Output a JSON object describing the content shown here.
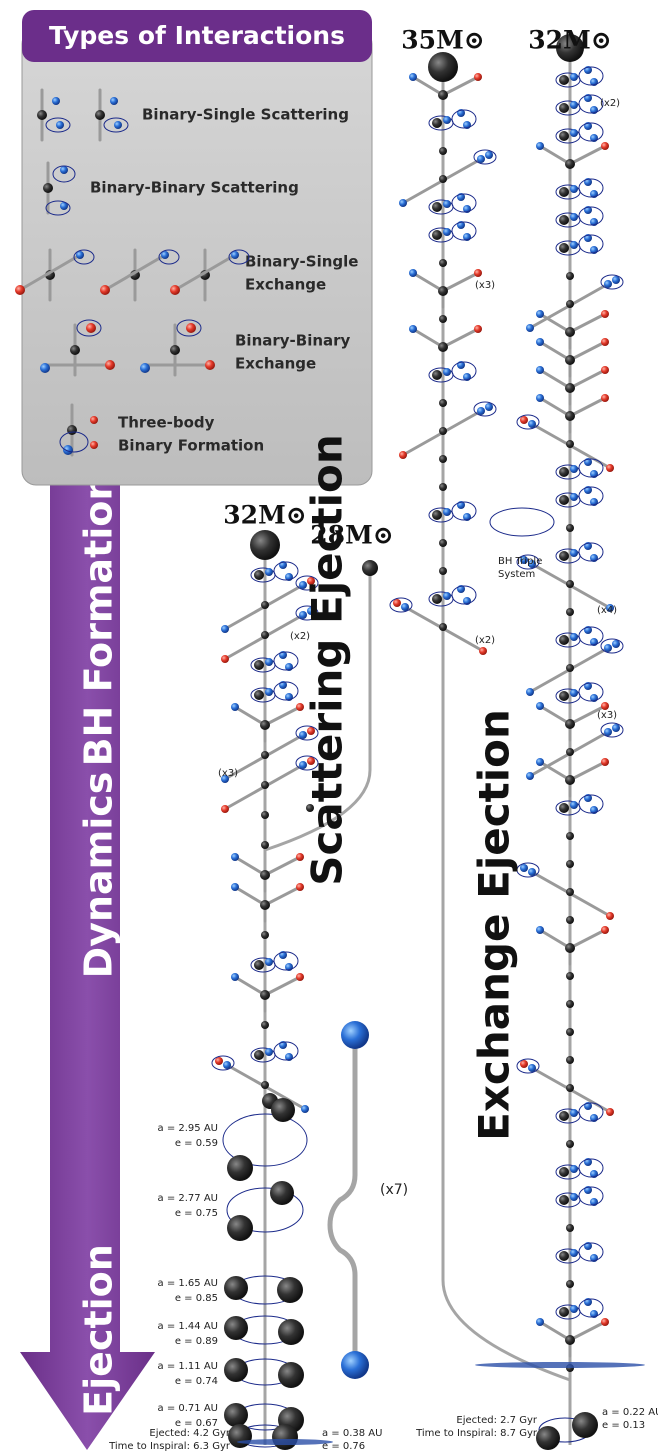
{
  "legend": {
    "title": "Types of Interactions",
    "items": [
      [
        "Binary-Single Scattering"
      ],
      [
        "Binary-Binary Scattering"
      ],
      [
        "Binary-Single",
        "Exchange"
      ],
      [
        "Binary-Binary",
        "Exchange"
      ],
      [
        "Three-body",
        "Binary Formation"
      ]
    ]
  },
  "arrow": {
    "labels": [
      "BH Formation",
      "Dynamics",
      "Ejection"
    ]
  },
  "scattering": {
    "masses": [
      "32M⊙",
      "28M⊙"
    ],
    "title": "Scattering Ejection",
    "repeats": [
      "(x2)",
      "(x3)"
    ],
    "merger_repeat": "(x7)",
    "orbits": [
      {
        "a": "a = 2.95 AU",
        "e": "e = 0.59"
      },
      {
        "a": "a = 2.77 AU",
        "e": "e = 0.75"
      },
      {
        "a": "a = 1.65 AU",
        "e": "e = 0.85"
      },
      {
        "a": "a = 1.44 AU",
        "e": "e = 0.89"
      },
      {
        "a": "a = 1.11 AU",
        "e": "e = 0.74"
      },
      {
        "a": "a = 0.71 AU",
        "e": "e = 0.67"
      }
    ],
    "final": {
      "a": "a = 0.38 AU",
      "e": "e = 0.76",
      "ejected": "Ejected: 4.2 Gyr",
      "inspiral": "Time to Inspiral: 6.3 Gyr"
    }
  },
  "exchange": {
    "masses": [
      "35M⊙",
      "32M⊙"
    ],
    "title": "Exchange Ejection",
    "repeats": [
      "(x3)",
      "(x2)",
      "(x2)",
      "(x4)",
      "(x3)"
    ],
    "triple": [
      "BH Triple",
      "System"
    ],
    "final": {
      "a": "a = 0.22 AU",
      "e": "e = 0.13",
      "ejected": "Ejected: 2.7 Gyr",
      "inspiral": "Time to Inspiral: 8.7 Gyr"
    }
  }
}
